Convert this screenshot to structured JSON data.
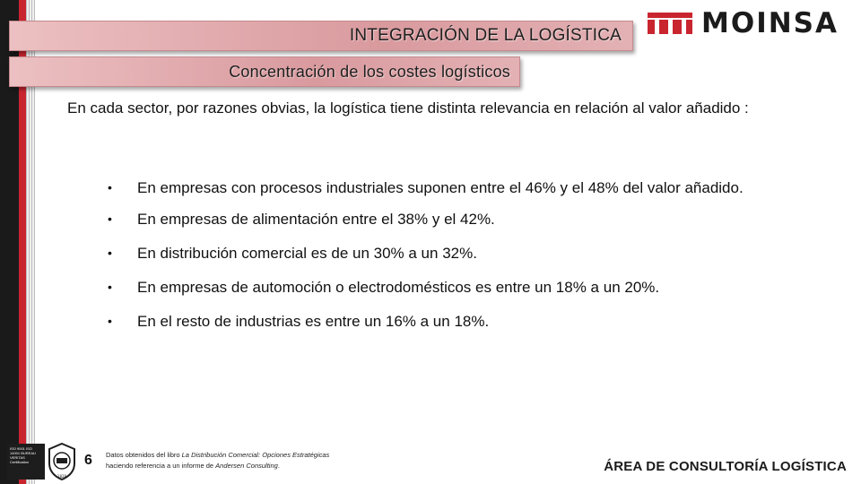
{
  "header": {
    "section_title": "INTEGRACIÓN DE LA LOGÍSTICA",
    "subtitle": "Concentración de los costes logísticos"
  },
  "logo": {
    "text": "MOINSA",
    "color": "#c9252f"
  },
  "intro": "En cada sector, por razones obvias, la logística tiene distinta relevancia en relación al valor añadido :",
  "bullets": [
    "En empresas con procesos industriales suponen entre el 46% y el 48% del valor añadido.",
    "En empresas de alimentación entre el 38% y el 42%.",
    "En distribución comercial es de un 30% a un 32%.",
    "En empresas de automoción o electrodomésticos es entre un 18% a un 20%.",
    "En el resto de industrias es entre un 16% a un 18%."
  ],
  "footer": {
    "page_number": "6",
    "source_prefix": "Datos obtenidos del libro ",
    "source_book": "La Distribución Comercial: Opciones Estratégicas",
    "source_mid": "haciendo referencia a un informe de ",
    "source_firm": "Andersen Consulting",
    "source_end": ".",
    "area": "ÁREA DE CONSULTORÍA LOGÍSTICA",
    "cert_text": "ISO 9001 ISO 14001 BUREAU VERITAS Certification"
  }
}
